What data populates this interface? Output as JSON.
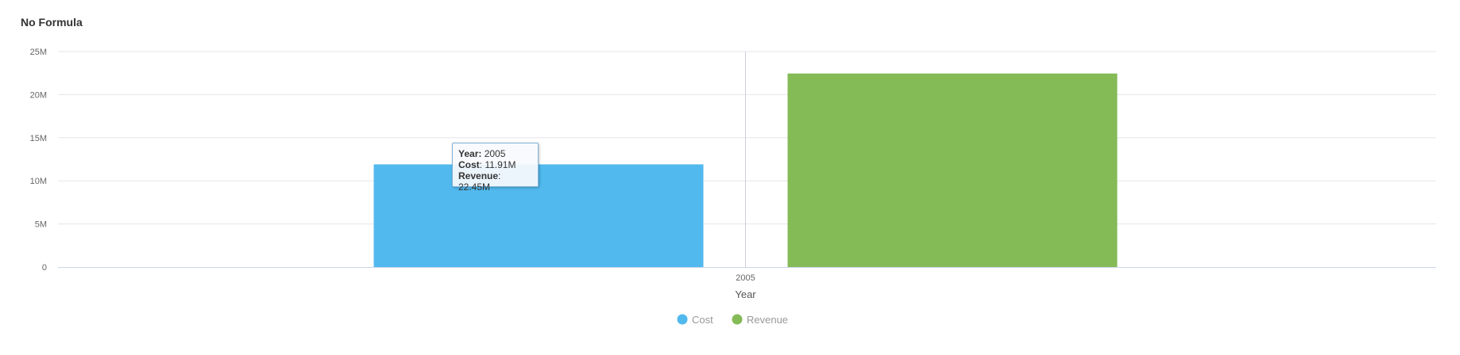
{
  "chart_title": "No Formula",
  "colors": {
    "cost": "#51b9ee",
    "revenue": "#84bb57",
    "grid": "#e6e6ec",
    "crosshair": "#ccccdd"
  },
  "chart_data": {
    "type": "bar",
    "title": "No Formula",
    "categories": [
      "2005"
    ],
    "series": [
      {
        "name": "Cost",
        "values": [
          11.91
        ],
        "color": "#51b9ee"
      },
      {
        "name": "Revenue",
        "values": [
          22.45
        ],
        "color": "#84bb57"
      }
    ],
    "xlabel": "Year",
    "ylabel": "",
    "ylim": [
      0,
      25
    ],
    "yticks": [
      0,
      5,
      10,
      15,
      20,
      25
    ],
    "ytick_labels": [
      "0",
      "5M",
      "10M",
      "15M",
      "20M",
      "25M"
    ],
    "legend_position": "bottom",
    "grid": true
  },
  "tooltip": {
    "year_label": "Year",
    "year_value": "2005",
    "cost_label": "Cost",
    "cost_value": "11.91M",
    "revenue_label": "Revenue",
    "revenue_value": "22.45M"
  }
}
